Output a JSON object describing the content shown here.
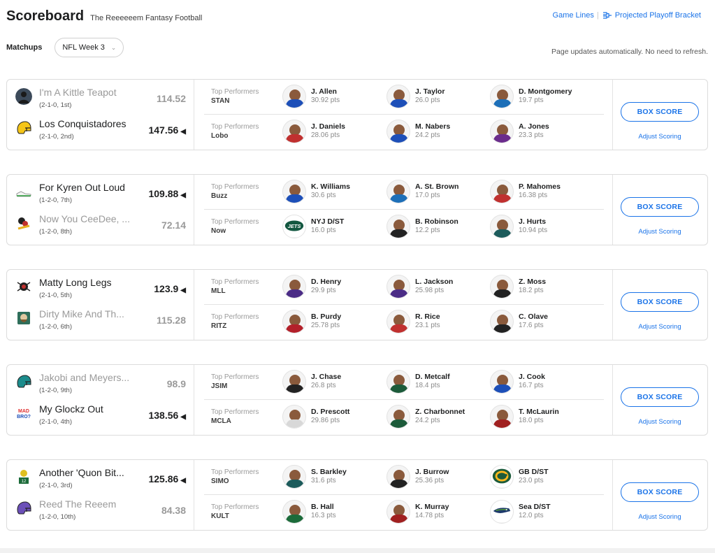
{
  "header": {
    "title": "Scoreboard",
    "league": "The Reeeeeem Fantasy Football",
    "game_lines": "Game Lines",
    "bracket": "Projected Playoff Bracket"
  },
  "filter": {
    "label": "Matchups",
    "week": "NFL Week 3"
  },
  "auto_note": "Page updates automatically. No need to refresh.",
  "common": {
    "top_performers": "Top Performers",
    "box_score": "BOX SCORE",
    "adjust_scoring": "Adjust Scoring"
  },
  "matchups": [
    {
      "teams": [
        {
          "name": "I'm A Kittle Teapot",
          "record": "(2-1-0, 1st)",
          "score": "114.52",
          "winner": false,
          "logo": "silhouette-logo",
          "color": "#3c4a5a"
        },
        {
          "name": "Los Conquistadores",
          "record": "(2-1-0, 2nd)",
          "score": "147.56",
          "winner": true,
          "logo": "helmet-logo",
          "color": "#f5c518"
        }
      ],
      "performers": [
        {
          "abbr": "STAN",
          "players": [
            {
              "name": "J. Allen",
              "pts": "30.92 pts",
              "jersey": "#1d4fb8"
            },
            {
              "name": "J. Taylor",
              "pts": "26.0 pts",
              "jersey": "#1d4fb8"
            },
            {
              "name": "D. Montgomery",
              "pts": "19.7 pts",
              "jersey": "#1d6fb8"
            }
          ]
        },
        {
          "abbr": "Lobo",
          "players": [
            {
              "name": "J. Daniels",
              "pts": "28.06 pts",
              "jersey": "#c0302f"
            },
            {
              "name": "M. Nabers",
              "pts": "24.2 pts",
              "jersey": "#1d4fb8"
            },
            {
              "name": "A. Jones",
              "pts": "23.3 pts",
              "jersey": "#6b2c8c"
            }
          ]
        }
      ]
    },
    {
      "teams": [
        {
          "name": "For Kyren Out Loud",
          "record": "(1-2-0, 7th)",
          "score": "109.88",
          "winner": true,
          "logo": "shoe-logo",
          "color": "#d8d8d8"
        },
        {
          "name": "Now You CeeDee, ...",
          "record": "(1-2-0, 8th)",
          "score": "72.14",
          "winner": false,
          "logo": "cartoon-logo",
          "color": "#c0302f"
        }
      ],
      "performers": [
        {
          "abbr": "Buzz",
          "players": [
            {
              "name": "K. Williams",
              "pts": "30.6 pts",
              "jersey": "#1d4fb8"
            },
            {
              "name": "A. St. Brown",
              "pts": "17.0 pts",
              "jersey": "#1d6fb8"
            },
            {
              "name": "P. Mahomes",
              "pts": "16.38 pts",
              "jersey": "#c0302f"
            }
          ]
        },
        {
          "abbr": "Now",
          "players": [
            {
              "name": "NYJ D/ST",
              "pts": "16.0 pts",
              "jersey": "#125740",
              "team_logo": "JETS"
            },
            {
              "name": "B. Robinson",
              "pts": "12.2 pts",
              "jersey": "#222222"
            },
            {
              "name": "J. Hurts",
              "pts": "10.94 pts",
              "jersey": "#1c5b5b"
            }
          ]
        }
      ]
    },
    {
      "teams": [
        {
          "name": "Matty Long Legs",
          "record": "(2-1-0, 5th)",
          "score": "123.9",
          "winner": true,
          "logo": "spider-logo",
          "color": "#c0302f"
        },
        {
          "name": "Dirty Mike And Th...",
          "record": "(1-2-0, 6th)",
          "score": "115.28",
          "winner": false,
          "logo": "bearded-logo",
          "color": "#2f6e5a"
        }
      ],
      "performers": [
        {
          "abbr": "MLL",
          "players": [
            {
              "name": "D. Henry",
              "pts": "29.9 pts",
              "jersey": "#4b2c86"
            },
            {
              "name": "L. Jackson",
              "pts": "25.98 pts",
              "jersey": "#4b2c86"
            },
            {
              "name": "Z. Moss",
              "pts": "18.2 pts",
              "jersey": "#222222"
            }
          ]
        },
        {
          "abbr": "RITZ",
          "players": [
            {
              "name": "B. Purdy",
              "pts": "25.78 pts",
              "jersey": "#b3202a"
            },
            {
              "name": "R. Rice",
              "pts": "23.1 pts",
              "jersey": "#c0302f"
            },
            {
              "name": "C. Olave",
              "pts": "17.6 pts",
              "jersey": "#222222"
            }
          ]
        }
      ]
    },
    {
      "teams": [
        {
          "name": "Jakobi and Meyers...",
          "record": "(1-2-0, 9th)",
          "score": "98.9",
          "winner": false,
          "logo": "helmet-logo",
          "color": "#1c8c8c"
        },
        {
          "name": "My Glockz Out",
          "record": "(2-1-0, 4th)",
          "score": "138.56",
          "winner": true,
          "logo": "text-logo",
          "color": "#1d4fb8"
        }
      ],
      "performers": [
        {
          "abbr": "JSIM",
          "players": [
            {
              "name": "J. Chase",
              "pts": "26.8 pts",
              "jersey": "#222222"
            },
            {
              "name": "D. Metcalf",
              "pts": "18.4 pts",
              "jersey": "#1c5b3a"
            },
            {
              "name": "J. Cook",
              "pts": "16.7 pts",
              "jersey": "#1d4fb8"
            }
          ]
        },
        {
          "abbr": "MCLA",
          "players": [
            {
              "name": "D. Prescott",
              "pts": "29.86 pts",
              "jersey": "#d8d8d8"
            },
            {
              "name": "Z. Charbonnet",
              "pts": "24.2 pts",
              "jersey": "#1c5b3a"
            },
            {
              "name": "T. McLaurin",
              "pts": "18.0 pts",
              "jersey": "#a02020"
            }
          ]
        }
      ]
    },
    {
      "teams": [
        {
          "name": "Another 'Quon Bit...",
          "record": "(2-1-0, 3rd)",
          "score": "125.86",
          "winner": true,
          "logo": "jersey-logo",
          "color": "#1c6b3a"
        },
        {
          "name": "Reed The Reeem",
          "record": "(1-2-0, 10th)",
          "score": "84.38",
          "winner": false,
          "logo": "helmet-logo",
          "color": "#6b4fb8"
        }
      ],
      "performers": [
        {
          "abbr": "SIMO",
          "players": [
            {
              "name": "S. Barkley",
              "pts": "31.6 pts",
              "jersey": "#1c5b5b"
            },
            {
              "name": "J. Burrow",
              "pts": "25.36 pts",
              "jersey": "#222222"
            },
            {
              "name": "GB D/ST",
              "pts": "23.0 pts",
              "jersey": "#1c5b3a",
              "team_logo": "G"
            }
          ]
        },
        {
          "abbr": "KULT",
          "players": [
            {
              "name": "B. Hall",
              "pts": "16.3 pts",
              "jersey": "#1c6b3a"
            },
            {
              "name": "K. Murray",
              "pts": "14.78 pts",
              "jersey": "#a02020"
            },
            {
              "name": "Sea D/ST",
              "pts": "12.0 pts",
              "jersey": "#1d3a6b",
              "team_logo": "SEA"
            }
          ]
        }
      ]
    }
  ]
}
